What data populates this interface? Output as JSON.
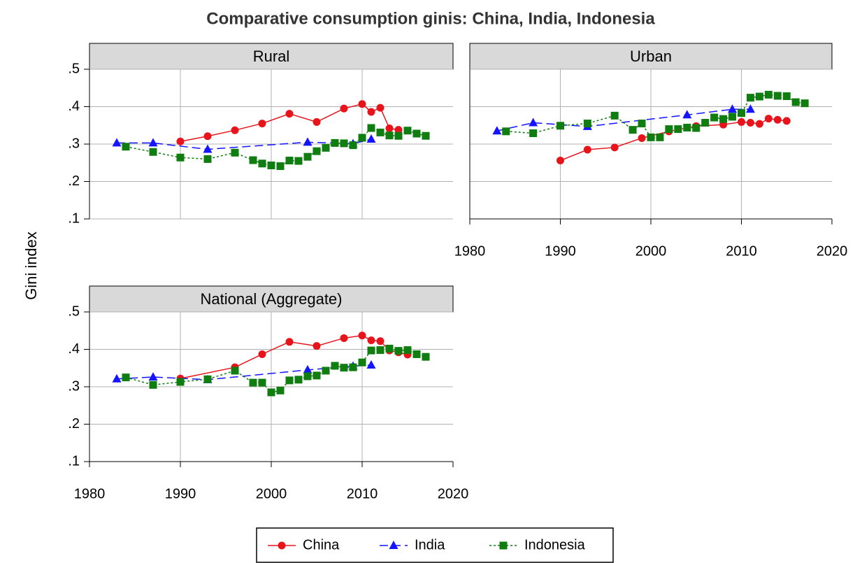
{
  "figure": {
    "title": "Comparative consumption ginis: China, India, Indonesia",
    "ylabel": "Gini index"
  },
  "chart_data": [
    {
      "type": "line",
      "title": "Rural",
      "xlim": [
        1980,
        2020
      ],
      "xticks": [
        1980,
        1990,
        2000,
        2010,
        2020
      ],
      "show_xtick_labels": false,
      "show_ytick_labels": true,
      "ylim": [
        0.1,
        0.5
      ],
      "yticks": [
        {
          "value": 0.1,
          "label": ".1"
        },
        {
          "value": 0.2,
          "label": ".2"
        },
        {
          "value": 0.3,
          "label": ".3"
        },
        {
          "value": 0.4,
          "label": ".4"
        },
        {
          "value": 0.5,
          "label": ".5"
        }
      ],
      "grid": true,
      "series": [
        {
          "name": "China",
          "color": "#e8141c",
          "marker": "circle",
          "dash": "solid",
          "x": [
            1990,
            1993,
            1996,
            1999,
            2002,
            2005,
            2008,
            2010,
            2011,
            2012,
            2013,
            2014
          ],
          "values": [
            0.307,
            0.321,
            0.337,
            0.355,
            0.381,
            0.359,
            0.395,
            0.407,
            0.386,
            0.397,
            0.342,
            0.338
          ]
        },
        {
          "name": "India",
          "color": "#1414ff",
          "marker": "triangle",
          "dash": "dashed",
          "x": [
            1983,
            1987,
            1993,
            2004,
            2009,
            2011
          ],
          "values": [
            0.303,
            0.303,
            0.286,
            0.305,
            0.301,
            0.313
          ]
        },
        {
          "name": "Indonesia",
          "color": "#0f7d0f",
          "marker": "square",
          "dash": "dotted",
          "x": [
            1984,
            1987,
            1990,
            1993,
            1996,
            1998,
            1999,
            2000,
            2001,
            2002,
            2003,
            2004,
            2005,
            2006,
            2007,
            2008,
            2009,
            2010,
            2011,
            2012,
            2013,
            2014,
            2015,
            2016,
            2017
          ],
          "values": [
            0.293,
            0.279,
            0.264,
            0.26,
            0.277,
            0.257,
            0.248,
            0.243,
            0.241,
            0.256,
            0.255,
            0.266,
            0.281,
            0.29,
            0.303,
            0.302,
            0.297,
            0.317,
            0.343,
            0.331,
            0.323,
            0.322,
            0.336,
            0.328,
            0.322
          ]
        }
      ]
    },
    {
      "type": "line",
      "title": "Urban",
      "xlim": [
        1980,
        2020
      ],
      "xticks": [
        1980,
        1990,
        2000,
        2010,
        2020
      ],
      "show_xtick_labels": true,
      "show_ytick_labels": false,
      "ylim": [
        0.1,
        0.5
      ],
      "yticks": [
        {
          "value": 0.1,
          "label": ".1"
        },
        {
          "value": 0.2,
          "label": ".2"
        },
        {
          "value": 0.3,
          "label": ".3"
        },
        {
          "value": 0.4,
          "label": ".4"
        },
        {
          "value": 0.5,
          "label": ".5"
        }
      ],
      "grid": true,
      "series": [
        {
          "name": "China",
          "color": "#e8141c",
          "marker": "circle",
          "dash": "solid",
          "x": [
            1990,
            1993,
            1996,
            1999,
            2002,
            2005,
            2008,
            2010,
            2011,
            2012,
            2013,
            2014,
            2015
          ],
          "values": [
            0.256,
            0.285,
            0.291,
            0.316,
            0.334,
            0.348,
            0.352,
            0.359,
            0.357,
            0.354,
            0.368,
            0.365,
            0.362
          ]
        },
        {
          "name": "India",
          "color": "#1414ff",
          "marker": "triangle",
          "dash": "dashed",
          "x": [
            1983,
            1987,
            1993,
            2004,
            2009,
            2011
          ],
          "values": [
            0.335,
            0.357,
            0.347,
            0.378,
            0.393,
            0.393
          ]
        },
        {
          "name": "Indonesia",
          "color": "#0f7d0f",
          "marker": "square",
          "dash": "dotted",
          "x": [
            1984,
            1987,
            1990,
            1993,
            1996,
            1998,
            1999,
            2000,
            2001,
            2002,
            2003,
            2004,
            2005,
            2006,
            2007,
            2008,
            2009,
            2010,
            2011,
            2012,
            2013,
            2014,
            2015,
            2016,
            2017
          ],
          "values": [
            0.334,
            0.329,
            0.349,
            0.355,
            0.376,
            0.338,
            0.355,
            0.318,
            0.318,
            0.34,
            0.34,
            0.344,
            0.343,
            0.357,
            0.371,
            0.367,
            0.373,
            0.383,
            0.424,
            0.427,
            0.432,
            0.429,
            0.428,
            0.412,
            0.409
          ]
        }
      ]
    },
    {
      "type": "line",
      "title": "National (Aggregate)",
      "xlim": [
        1980,
        2020
      ],
      "xticks": [
        1980,
        1990,
        2000,
        2010,
        2020
      ],
      "show_xtick_labels": true,
      "show_ytick_labels": true,
      "ylim": [
        0.1,
        0.5
      ],
      "yticks": [
        {
          "value": 0.1,
          "label": ".1"
        },
        {
          "value": 0.2,
          "label": ".2"
        },
        {
          "value": 0.3,
          "label": ".3"
        },
        {
          "value": 0.4,
          "label": ".4"
        },
        {
          "value": 0.5,
          "label": ".5"
        }
      ],
      "grid": true,
      "series": [
        {
          "name": "China",
          "color": "#e8141c",
          "marker": "circle",
          "dash": "solid",
          "x": [
            1990,
            1996,
            1999,
            2002,
            2005,
            2008,
            2010,
            2011,
            2012,
            2013,
            2014,
            2015
          ],
          "values": [
            0.322,
            0.352,
            0.387,
            0.42,
            0.409,
            0.43,
            0.437,
            0.424,
            0.422,
            0.397,
            0.392,
            0.386
          ]
        },
        {
          "name": "India",
          "color": "#1414ff",
          "marker": "triangle",
          "dash": "dashed",
          "x": [
            1983,
            1987,
            1993,
            2004,
            2009,
            2011
          ],
          "values": [
            0.321,
            0.326,
            0.319,
            0.345,
            0.355,
            0.358
          ]
        },
        {
          "name": "Indonesia",
          "color": "#0f7d0f",
          "marker": "square",
          "dash": "dotted",
          "x": [
            1984,
            1987,
            1990,
            1993,
            1996,
            1998,
            1999,
            2000,
            2001,
            2002,
            2003,
            2004,
            2005,
            2006,
            2007,
            2008,
            2009,
            2010,
            2011,
            2012,
            2013,
            2014,
            2015,
            2016,
            2017
          ],
          "values": [
            0.325,
            0.305,
            0.313,
            0.32,
            0.343,
            0.311,
            0.311,
            0.285,
            0.29,
            0.317,
            0.319,
            0.328,
            0.33,
            0.343,
            0.356,
            0.351,
            0.352,
            0.365,
            0.397,
            0.398,
            0.402,
            0.396,
            0.398,
            0.387,
            0.38
          ]
        }
      ]
    }
  ]
}
